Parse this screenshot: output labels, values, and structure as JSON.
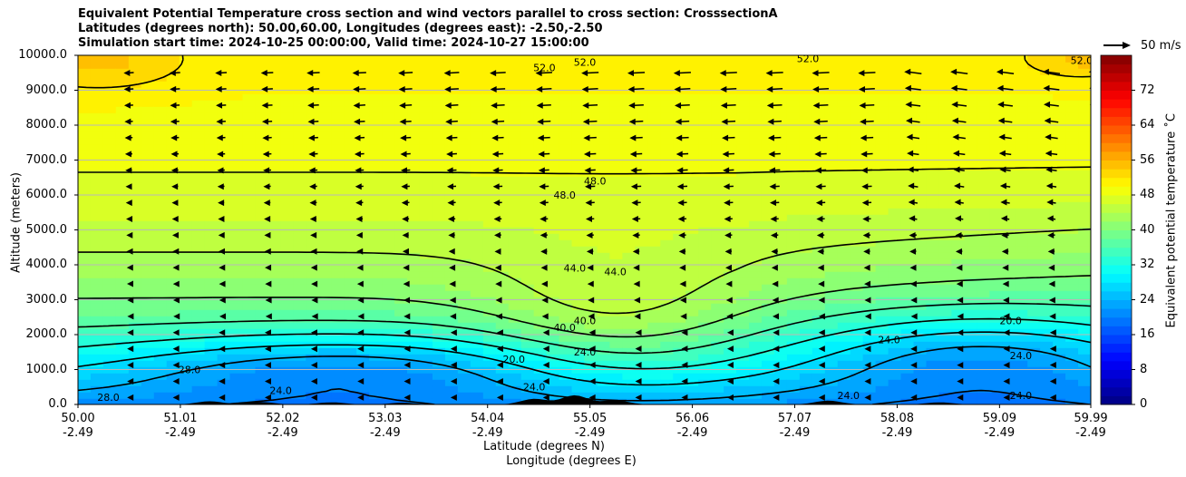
{
  "title_lines": [
    "Equivalent Potential Temperature cross section and wind vectors parallel to cross section: CrosssectionA",
    "Latitudes (degrees north): 50.00,60.00, Longitudes (degrees east): -2.50,-2.50",
    "Simulation start time: 2024-10-25 00:00:00, Valid time: 2024-10-27 15:00:00"
  ],
  "chart_data": {
    "type": "heatmap",
    "subtype": "cross-section contour with wind vectors",
    "xlabel_line1": "Latitude (degrees N)",
    "xlabel_line2": "Longitude (degrees E)",
    "ylabel": "Altitude (meters)",
    "ylim": [
      0,
      10000
    ],
    "xlim": [
      50.0,
      59.99
    ],
    "x_ticks": [
      {
        "lat": "50.00",
        "lon": "-2.49",
        "value": 50.0
      },
      {
        "lat": "51.01",
        "lon": "-2.49",
        "value": 51.01
      },
      {
        "lat": "52.02",
        "lon": "-2.49",
        "value": 52.02
      },
      {
        "lat": "53.03",
        "lon": "-2.49",
        "value": 53.03
      },
      {
        "lat": "54.04",
        "lon": "-2.49",
        "value": 54.04
      },
      {
        "lat": "55.05",
        "lon": "-2.49",
        "value": 55.05
      },
      {
        "lat": "56.06",
        "lon": "-2.49",
        "value": 56.06
      },
      {
        "lat": "57.07",
        "lon": "-2.49",
        "value": 57.07
      },
      {
        "lat": "58.08",
        "lon": "-2.49",
        "value": 58.08
      },
      {
        "lat": "59.09",
        "lon": "-2.49",
        "value": 59.09
      },
      {
        "lat": "59.99",
        "lon": "-2.49",
        "value": 59.99
      }
    ],
    "y_ticks": [
      {
        "label": "0.0",
        "value": 0
      },
      {
        "label": "1000.0",
        "value": 1000
      },
      {
        "label": "2000.0",
        "value": 2000
      },
      {
        "label": "3000.0",
        "value": 3000
      },
      {
        "label": "4000.0",
        "value": 4000
      },
      {
        "label": "5000.0",
        "value": 5000
      },
      {
        "label": "6000.0",
        "value": 6000
      },
      {
        "label": "7000.0",
        "value": 7000
      },
      {
        "label": "8000.0",
        "value": 8000
      },
      {
        "label": "9000.0",
        "value": 9000
      },
      {
        "label": "10000.0",
        "value": 10000
      }
    ],
    "colorbar": {
      "label": "Equivalent potential temperature $^\\circ$C",
      "label_display": "Equivalent potential temperature ˚C",
      "range": [
        0,
        80
      ],
      "ticks": [
        "0",
        "8",
        "16",
        "24",
        "32",
        "40",
        "48",
        "56",
        "64",
        "72"
      ],
      "tick_values": [
        0,
        8,
        16,
        24,
        32,
        40,
        48,
        56,
        64,
        72
      ],
      "colormap": "jet"
    },
    "quiver_key": {
      "label": "50 m/s",
      "speed": 50
    },
    "wind_direction": "predominantly toward lower latitude (southward) along section, strongest aloft",
    "contour_labels": [
      {
        "text": "52.0",
        "x": 55.0,
        "y": 9700
      },
      {
        "text": "52.0",
        "x": 54.6,
        "y": 9550
      },
      {
        "text": "52.0",
        "x": 57.2,
        "y": 9800
      },
      {
        "text": "48.0",
        "x": 54.8,
        "y": 5900
      },
      {
        "text": "48.0",
        "x": 55.1,
        "y": 6300
      },
      {
        "text": "44.0",
        "x": 54.9,
        "y": 3800
      },
      {
        "text": "44.0",
        "x": 55.3,
        "y": 3700
      },
      {
        "text": "40.0",
        "x": 55.0,
        "y": 2300
      },
      {
        "text": "40.0",
        "x": 54.8,
        "y": 2100
      },
      {
        "text": "24.0",
        "x": 55.0,
        "y": 1400
      },
      {
        "text": "20.0",
        "x": 54.3,
        "y": 1200
      },
      {
        "text": "28.0",
        "x": 50.3,
        "y": 100
      },
      {
        "text": "28.0",
        "x": 51.1,
        "y": 900
      },
      {
        "text": "24.0",
        "x": 52.0,
        "y": 300
      },
      {
        "text": "24.0",
        "x": 54.5,
        "y": 400
      },
      {
        "text": "24.0",
        "x": 58.0,
        "y": 1750
      },
      {
        "text": "20.0",
        "x": 59.2,
        "y": 2300
      },
      {
        "text": "24.0",
        "x": 59.3,
        "y": 1300
      },
      {
        "text": "24.0",
        "x": 59.3,
        "y": 150
      },
      {
        "text": "24.0",
        "x": 57.6,
        "y": 150
      },
      {
        "text": "52.0",
        "x": 59.9,
        "y": 9750
      }
    ],
    "theta_e_field_summary": [
      {
        "region": "upper troposphere 8000-10000 m",
        "approx_value": 50
      },
      {
        "region": "mid troposphere 4000-7000 m",
        "approx_value": 44
      },
      {
        "region": "lower troposphere 2000-3000 m south",
        "approx_value": 34
      },
      {
        "region": "boundary layer minimum 800-1500 m, 51-54N",
        "approx_value": 18
      },
      {
        "region": "boundary layer minimum 500-2500 m, 58-60N",
        "approx_value": 18
      }
    ]
  }
}
